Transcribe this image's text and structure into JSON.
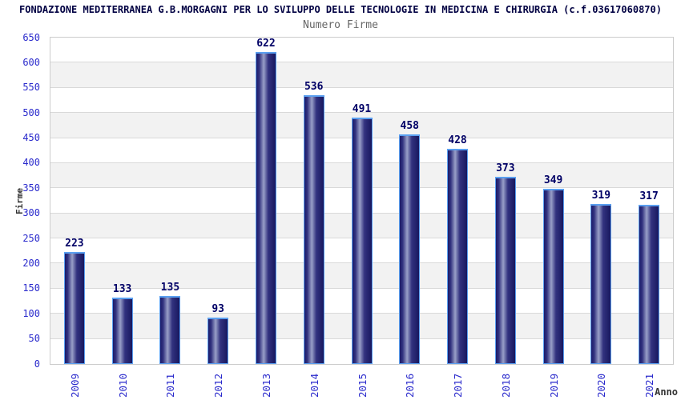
{
  "header": {
    "title": "FONDAZIONE MEDITERRANEA G.B.MORGAGNI PER LO SVILUPPO DELLE TECNOLOGIE IN MEDICINA E CHIRURGIA (c.f.03617060870)",
    "subtitle": "Numero Firme"
  },
  "chart_data": {
    "type": "bar",
    "title": "Numero Firme",
    "categories": [
      "2009",
      "2010",
      "2011",
      "2012",
      "2013",
      "2014",
      "2015",
      "2016",
      "2017",
      "2018",
      "2019",
      "2020",
      "2021"
    ],
    "values": [
      223,
      133,
      135,
      93,
      622,
      536,
      491,
      458,
      428,
      373,
      349,
      319,
      317
    ],
    "xlabel": "Anno",
    "ylabel": "Firme",
    "ylim": [
      0,
      650
    ],
    "ytick_step": 50,
    "grid": "horizontal-only",
    "banded_background": true,
    "legend": "none"
  },
  "colors": {
    "title": "#000042",
    "subtitle": "#666666",
    "tick_label": "#2a2acc",
    "value_label": "#000066",
    "axis_title": "#333333",
    "plot_border": "#cccccc",
    "gridline": "#d9d9d9",
    "band_gray": "#f2f2f2",
    "bar_border": "#5a9ff0",
    "bar_gradient": [
      "#1b1b6a",
      "#32327f",
      "#999fc8",
      "#32327f",
      "#18185f"
    ]
  }
}
